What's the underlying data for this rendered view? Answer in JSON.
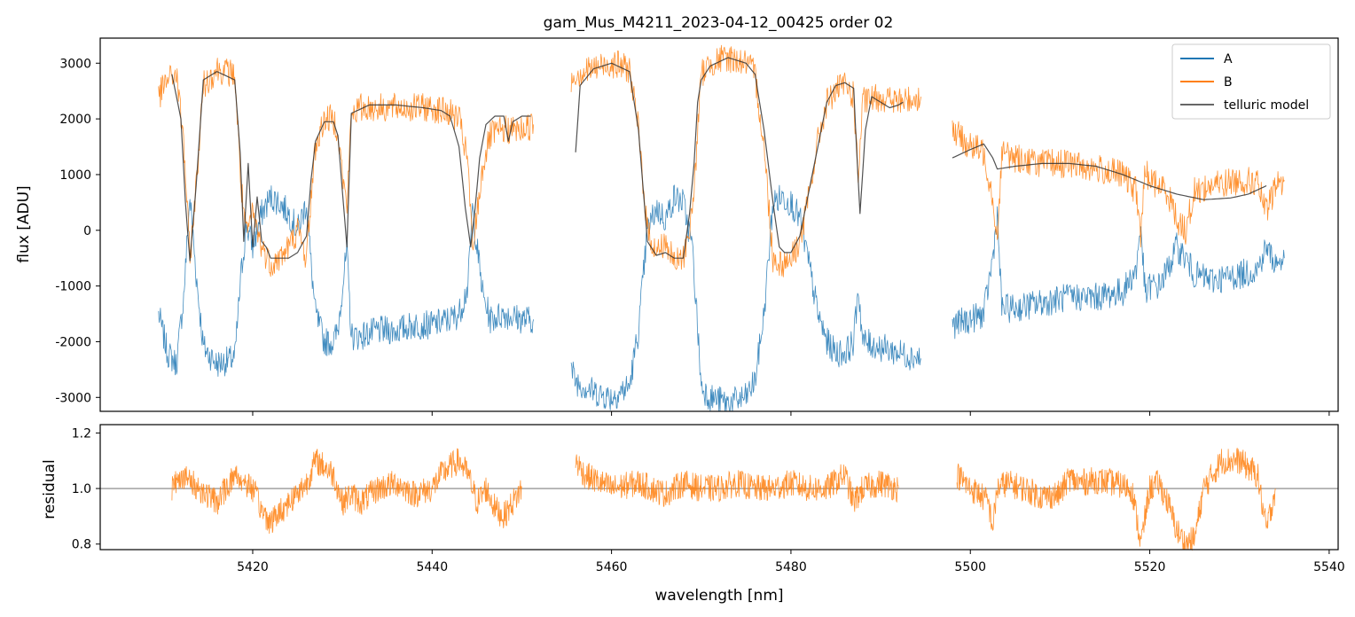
{
  "chart_data": [
    {
      "type": "line",
      "title": "gam_Mus_M4211_2023-04-12_00425  order 02",
      "ylabel": "flux [ADU]",
      "xlim": [
        5403,
        5541
      ],
      "ylim": [
        -3250,
        3450
      ],
      "y_ticks": [
        -3000,
        -2000,
        -1000,
        0,
        1000,
        2000,
        3000
      ],
      "legend": {
        "placement": "top-right",
        "entries": [
          "A",
          "B",
          "telluric model"
        ]
      },
      "colors": {
        "A": "#1f77b4",
        "B": "#ff7f0e",
        "telluric model": "#333333"
      },
      "series": [
        {
          "name": "A",
          "segments": [
            {
              "x": [
                5409.5,
                5410.5,
                5411.5,
                5412.3,
                5413,
                5413.7,
                5414.5,
                5416,
                5418,
                5418.7,
                5419.3,
                5420,
                5421,
                5422,
                5423,
                5424,
                5425,
                5426,
                5426.5,
                5427,
                5428,
                5429,
                5429.5,
                5430,
                5430.5,
                5431,
                5432,
                5434,
                5436,
                5438,
                5440,
                5442,
                5443,
                5444,
                5444.5,
                5445,
                5445.7,
                5446.5,
                5448,
                5450,
                5451.3
              ],
              "y": [
                -1500,
                -2200,
                -2400,
                -1200,
                600,
                -800,
                -2100,
                -2400,
                -2300,
                -800,
                100,
                -300,
                300,
                600,
                500,
                300,
                0,
                500,
                -600,
                -1500,
                -2000,
                -2000,
                -1800,
                -1000,
                -400,
                -1900,
                -1900,
                -1800,
                -1800,
                -1700,
                -1700,
                -1600,
                -1500,
                -1000,
                400,
                -300,
                -1200,
                -1600,
                -1500,
                -1600,
                -1600
              ]
            },
            {
              "x": [
                5455.5,
                5456,
                5458,
                5460,
                5462,
                5463,
                5464,
                5465,
                5466,
                5467,
                5468,
                5469,
                5469.5,
                5470,
                5471,
                5473,
                5475,
                5476,
                5477,
                5478,
                5479,
                5480,
                5481,
                5482,
                5483,
                5484,
                5485,
                5486,
                5487,
                5487.5,
                5488,
                5490,
                5492,
                5494.5
              ],
              "y": [
                -2500,
                -2700,
                -2900,
                -3000,
                -2800,
                -1800,
                0,
                400,
                200,
                600,
                500,
                -300,
                -1500,
                -2800,
                -3000,
                -3100,
                -3000,
                -2700,
                -1500,
                500,
                600,
                500,
                200,
                -600,
                -1500,
                -2000,
                -2200,
                -2200,
                -2000,
                -1000,
                -2000,
                -2100,
                -2200,
                -2300
              ]
            },
            {
              "x": [
                5498,
                5500,
                5501.5,
                5502.5,
                5503,
                5503.5,
                5505,
                5508,
                5511,
                5514,
                5517,
                5518.5,
                5519,
                5519.5,
                5520,
                5521,
                5522,
                5523,
                5524,
                5525,
                5527,
                5530,
                5532,
                5533,
                5534,
                5535
              ],
              "y": [
                -1700,
                -1600,
                -1500,
                -500,
                300,
                -1400,
                -1400,
                -1300,
                -1200,
                -1200,
                -1100,
                -700,
                100,
                -1200,
                -1000,
                -1000,
                -700,
                -300,
                -500,
                -800,
                -900,
                -800,
                -700,
                -300,
                -600,
                -500
              ]
            }
          ]
        },
        {
          "name": "B",
          "segments": [
            {
              "x": [
                5409.5,
                5410.5,
                5411.5,
                5412.3,
                5413,
                5413.7,
                5414.5,
                5416,
                5418,
                5418.7,
                5419.3,
                5420,
                5421,
                5422,
                5423,
                5424,
                5425,
                5426,
                5426.5,
                5427,
                5428,
                5429,
                5429.5,
                5430,
                5430.5,
                5431,
                5432,
                5434,
                5436,
                5438,
                5440,
                5442,
                5443,
                5444,
                5444.5,
                5445,
                5445.7,
                5446.5,
                5448,
                5450,
                5451.3
              ],
              "y": [
                2400,
                2700,
                2800,
                1600,
                -500,
                800,
                2600,
                2900,
                2800,
                800,
                -100,
                300,
                -300,
                -600,
                -500,
                -300,
                0,
                -500,
                600,
                1500,
                2000,
                2000,
                1800,
                1000,
                400,
                2100,
                2200,
                2200,
                2200,
                2200,
                2200,
                2100,
                2000,
                1200,
                -400,
                300,
                1200,
                1700,
                1800,
                1800,
                1900
              ]
            },
            {
              "x": [
                5455.5,
                5456,
                5458,
                5460,
                5462,
                5463,
                5464,
                5465,
                5466,
                5467,
                5468,
                5469,
                5469.5,
                5470,
                5471,
                5473,
                5475,
                5476,
                5477,
                5478,
                5479,
                5480,
                5481,
                5482,
                5483,
                5484,
                5485,
                5486,
                5487,
                5487.5,
                5488,
                5490,
                5492,
                5494.5
              ],
              "y": [
                2700,
                2800,
                2900,
                3000,
                2900,
                1800,
                0,
                -400,
                -200,
                -600,
                -500,
                300,
                1500,
                2800,
                3000,
                3100,
                3000,
                2800,
                1500,
                -500,
                -600,
                -500,
                -200,
                600,
                1600,
                2300,
                2500,
                2600,
                2400,
                900,
                2300,
                2400,
                2300,
                2400
              ]
            },
            {
              "x": [
                5498,
                5500,
                5501.5,
                5502.5,
                5503,
                5503.5,
                5505,
                5508,
                5511,
                5514,
                5517,
                5518.5,
                5519,
                5519.5,
                5520,
                5521,
                5522,
                5523,
                5524,
                5525,
                5527,
                5530,
                5532,
                5533,
                5534,
                5535
              ],
              "y": [
                1800,
                1500,
                1400,
                600,
                -200,
                1400,
                1300,
                1200,
                1200,
                1100,
                1000,
                700,
                -100,
                1100,
                900,
                800,
                700,
                200,
                0,
                700,
                800,
                900,
                850,
                300,
                800,
                900
              ]
            }
          ]
        },
        {
          "name": "telluric model",
          "segments": [
            {
              "x": [
                5411,
                5412,
                5412.5,
                5413,
                5413.7,
                5414.5,
                5416,
                5418,
                5418.6,
                5419,
                5419.5,
                5420,
                5420.5,
                5421,
                5421.5,
                5422,
                5423,
                5424,
                5425,
                5426,
                5426.5,
                5427,
                5428,
                5429,
                5429.5,
                5430,
                5430.5,
                5431,
                5433,
                5436,
                5439,
                5441,
                5442,
                5443,
                5443.7,
                5444.3,
                5444.8,
                5445.3,
                5446,
                5447,
                5448,
                5448.5,
                5449,
                5450,
                5451
              ],
              "y": [
                2800,
                2000,
                500,
                -550,
                800,
                2700,
                2850,
                2700,
                1400,
                -200,
                1200,
                -300,
                600,
                -200,
                -300,
                -500,
                -500,
                -500,
                -400,
                -100,
                900,
                1600,
                1950,
                1950,
                1700,
                700,
                -300,
                2100,
                2250,
                2250,
                2200,
                2150,
                2050,
                1500,
                400,
                -300,
                400,
                1300,
                1900,
                2050,
                2050,
                1600,
                1950,
                2050,
                2050
              ]
            },
            {
              "x": [
                5456,
                5456.5,
                5458,
                5460,
                5462,
                5463,
                5464,
                5465,
                5466,
                5467,
                5468,
                5468.7,
                5469.2,
                5469.6,
                5470,
                5471,
                5473,
                5475,
                5476,
                5477,
                5478,
                5478.7,
                5479.3,
                5480,
                5481,
                5482,
                5483,
                5484,
                5485,
                5486,
                5487,
                5487.3,
                5487.7,
                5488.3,
                5489,
                5490,
                5491,
                5492,
                5492.5
              ],
              "y": [
                1400,
                2600,
                2900,
                3000,
                2850,
                1800,
                -200,
                -450,
                -400,
                -500,
                -500,
                300,
                1200,
                2300,
                2700,
                2950,
                3100,
                3000,
                2800,
                1800,
                500,
                -300,
                -400,
                -400,
                -100,
                700,
                1500,
                2300,
                2600,
                2650,
                2550,
                1500,
                300,
                1800,
                2400,
                2300,
                2200,
                2250,
                2300
              ]
            },
            {
              "x": [
                5498,
                5500,
                5501.5,
                5502.5,
                5503,
                5505,
                5508,
                5511,
                5514,
                5517,
                5520,
                5523,
                5526,
                5529,
                5531,
                5533
              ],
              "y": [
                1300,
                1450,
                1550,
                1300,
                1100,
                1150,
                1200,
                1200,
                1150,
                1000,
                800,
                650,
                550,
                580,
                650,
                800
              ]
            }
          ]
        }
      ]
    },
    {
      "type": "line",
      "xlabel": "wavelength [nm]",
      "ylabel": "residual",
      "xlim": [
        5403,
        5541
      ],
      "ylim": [
        0.78,
        1.23
      ],
      "x_ticks": [
        5420,
        5440,
        5460,
        5480,
        5500,
        5520,
        5540
      ],
      "y_ticks": [
        0.8,
        1.0,
        1.2
      ],
      "reference_line": 1.0,
      "series": [
        {
          "name": "residual",
          "segments": [
            {
              "x": [
                5411,
                5412,
                5414,
                5416,
                5418,
                5420,
                5421,
                5422,
                5424,
                5426,
                5427,
                5428,
                5429,
                5430,
                5431,
                5432,
                5434,
                5436,
                5438,
                5440,
                5441,
                5442,
                5443,
                5444,
                5445,
                5446,
                5447,
                5448,
                5449,
                5450
              ],
              "y": [
                1.0,
                1.05,
                1.0,
                0.95,
                1.05,
                1.0,
                0.92,
                0.88,
                0.95,
                1.02,
                1.1,
                1.08,
                1.05,
                0.95,
                0.98,
                0.95,
                1.0,
                1.02,
                0.98,
                1.0,
                1.05,
                1.08,
                1.1,
                1.05,
                0.95,
                1.0,
                0.93,
                0.9,
                0.95,
                1.0
              ]
            },
            {
              "x": [
                5456,
                5457,
                5460,
                5463,
                5466,
                5468,
                5470,
                5472,
                5474,
                5476,
                5478,
                5480,
                5482,
                5484,
                5486,
                5487,
                5488,
                5490,
                5492
              ],
              "y": [
                1.1,
                1.05,
                1.0,
                1.02,
                0.98,
                1.02,
                1.0,
                1.0,
                1.02,
                1.0,
                1.0,
                1.02,
                1.0,
                1.0,
                1.05,
                0.95,
                1.0,
                1.02,
                1.0
              ]
            },
            {
              "x": [
                5498.5,
                5500,
                5501,
                5502,
                5502.5,
                5503,
                5504,
                5506,
                5508,
                5510,
                5511,
                5512,
                5514,
                5516,
                5518,
                5519,
                5520,
                5521,
                5522,
                5523,
                5524,
                5525,
                5526,
                5527,
                5528,
                5530,
                5532,
                5533,
                5534
              ],
              "y": [
                1.05,
                1.0,
                0.98,
                0.95,
                0.86,
                1.0,
                1.02,
                1.0,
                0.97,
                0.98,
                1.04,
                1.02,
                1.03,
                1.02,
                1.0,
                0.8,
                1.0,
                1.02,
                0.95,
                0.85,
                0.8,
                0.82,
                1.0,
                1.05,
                1.1,
                1.1,
                1.05,
                0.85,
                1.0
              ]
            }
          ]
        }
      ]
    }
  ]
}
